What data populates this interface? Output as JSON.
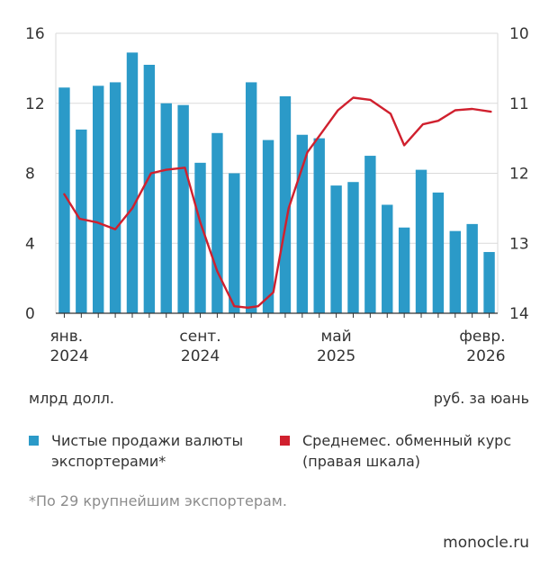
{
  "colors": {
    "bars": "#2b9ac8",
    "line": "#d0202e",
    "grid": "#dadada",
    "axis": "#333333"
  },
  "chart_data": {
    "type": "bar+line",
    "left_axis": {
      "label": "млрд долл.",
      "ticks": [
        "0",
        "4",
        "8",
        "12",
        "16"
      ],
      "ylim": [
        0,
        16
      ]
    },
    "right_axis": {
      "label": "руб. за юань",
      "ticks": [
        "10",
        "11",
        "12",
        "13",
        "14"
      ],
      "ylim": [
        10,
        14
      ],
      "inverted": true
    },
    "x_tick_labels": [
      {
        "line1": "янв.",
        "line2": "2024",
        "index": 0
      },
      {
        "line1": "сент.",
        "line2": "2024",
        "index": 8
      },
      {
        "line1": "май",
        "line2": "2025",
        "index": 16
      },
      {
        "line1": "февр.",
        "line2": "2026",
        "index": 25
      }
    ],
    "series": [
      {
        "name": "Чистые продажи валюты экспортерами*",
        "type": "bar",
        "axis": "left",
        "values": [
          12.9,
          10.5,
          13.0,
          13.2,
          14.9,
          14.2,
          12.0,
          11.9,
          8.6,
          10.3,
          8.0,
          13.2,
          9.9,
          12.4,
          10.2,
          10.0,
          7.3,
          7.5,
          9.0,
          6.2,
          4.9,
          8.2,
          6.9,
          4.7,
          5.1,
          3.5
        ]
      },
      {
        "name": "Среднемес. обменный курс (правая шкала)",
        "type": "line",
        "axis": "right",
        "x": [
          0,
          0.9,
          1.9,
          3.0,
          4.0,
          5.1,
          6.0,
          7.1,
          8.0,
          9.0,
          10.0,
          10.8,
          11.4,
          12.3,
          13.2,
          14.3,
          15.2,
          16.1,
          17.0,
          18.0,
          19.2,
          20.0,
          21.1,
          22.0,
          23.0,
          24.0,
          25.1
        ],
        "values": [
          12.3,
          12.65,
          12.7,
          12.8,
          12.5,
          12.0,
          11.95,
          11.92,
          12.7,
          13.4,
          13.9,
          13.92,
          13.9,
          13.7,
          12.5,
          11.7,
          11.4,
          11.1,
          10.92,
          10.95,
          11.15,
          11.6,
          11.3,
          11.25,
          11.1,
          11.08,
          11.12
        ]
      }
    ]
  },
  "units": {
    "left": "млрд долл.",
    "right": "руб. за юань"
  },
  "legend": {
    "bars": {
      "line1": "Чистые продажи валюты",
      "line2": "экспортерами*"
    },
    "line": {
      "line1": "Среднемес. обменный курс",
      "line2": "(правая шкала)"
    }
  },
  "footnote": "*По 29 крупнейшим экспортерам.",
  "source": "monocle.ru"
}
